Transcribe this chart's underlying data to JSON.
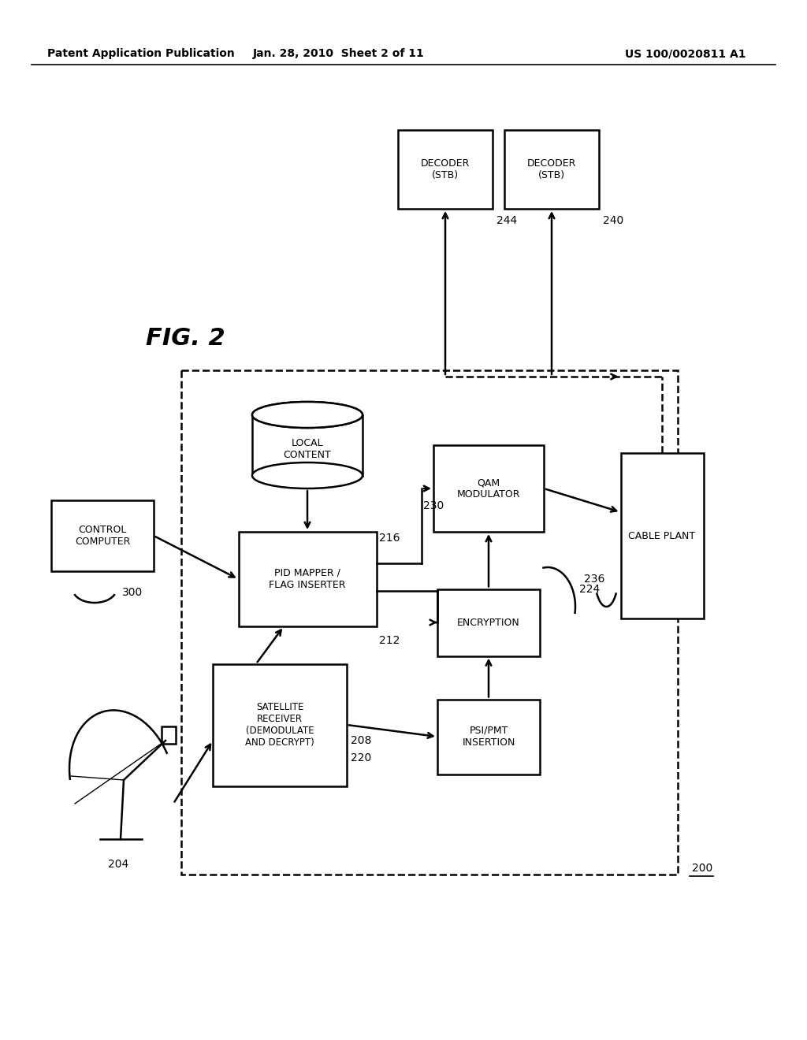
{
  "title_left": "Patent Application Publication",
  "title_center": "Jan. 28, 2010  Sheet 2 of 11",
  "title_right": "US 100/0020811 A1",
  "fig_label": "FIG. 2",
  "background_color": "#ffffff",
  "line_color": "#000000"
}
